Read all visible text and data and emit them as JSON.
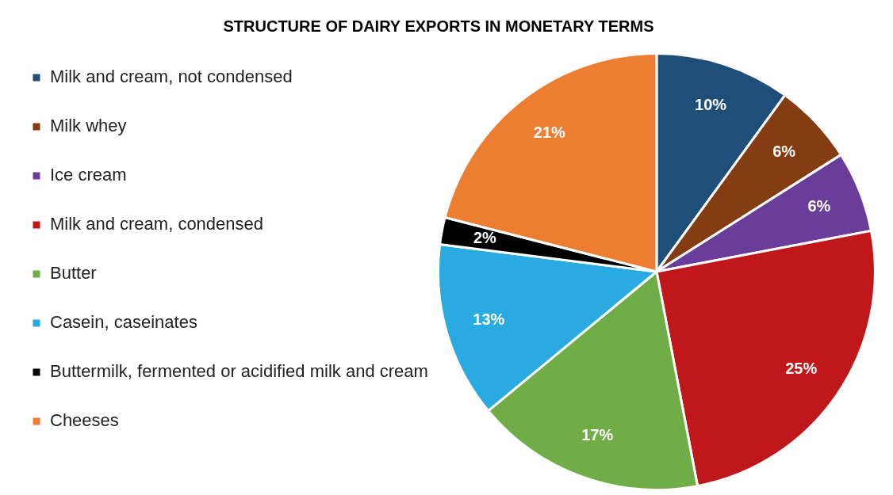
{
  "chart_data": {
    "type": "pie",
    "title": "STRUCTURE OF DAIRY EXPORTS IN MONETARY TERMS",
    "categories": [
      "Milk and cream, not condensed",
      "Milk whey",
      "Ice cream",
      "Milk and cream, condensed",
      "Butter",
      "Casein, caseinates",
      "Buttermilk, fermented or acidified milk and cream",
      "Cheeses"
    ],
    "values": [
      10,
      6,
      6,
      25,
      17,
      13,
      2,
      21
    ],
    "colors": [
      "#1f4e79",
      "#843c12",
      "#6a3d9a",
      "#c0171a",
      "#70ad47",
      "#29abe2",
      "#000000",
      "#ed7d31"
    ],
    "value_labels": [
      "10%",
      "6%",
      "6%",
      "25%",
      "17%",
      "13%",
      "2%",
      "21%"
    ],
    "legend": "left"
  }
}
